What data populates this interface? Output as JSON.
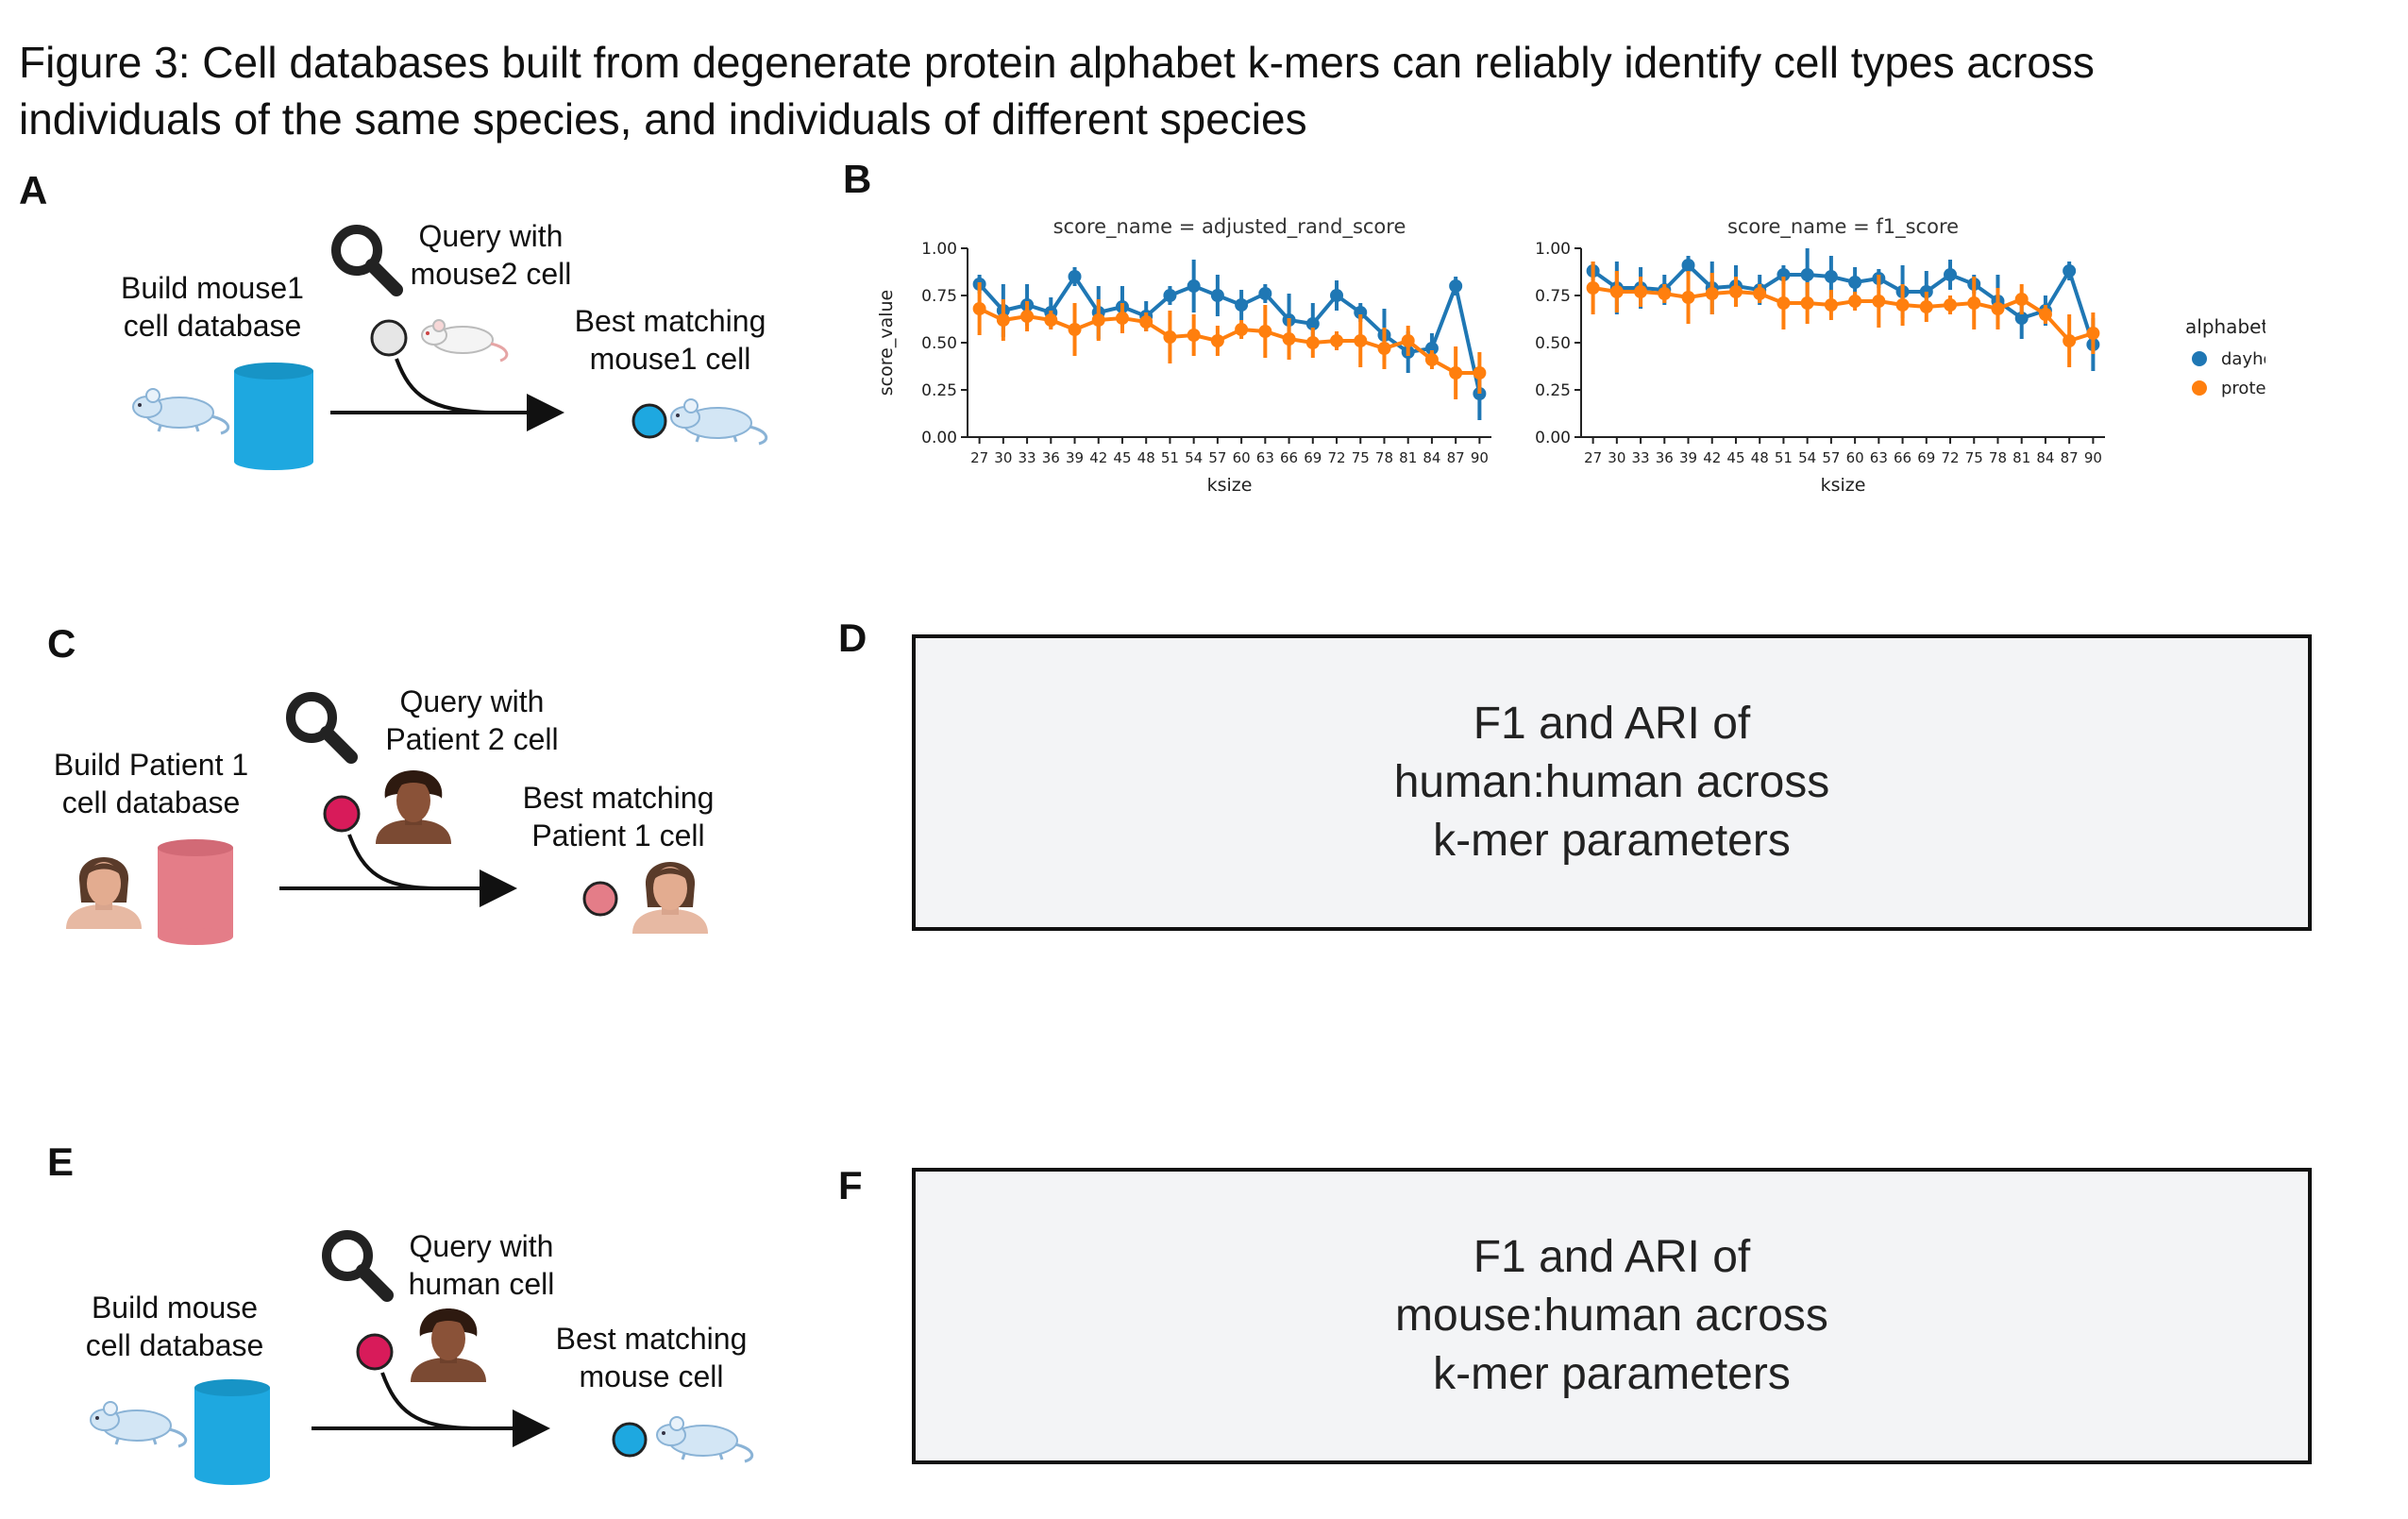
{
  "figure_title_line1": "Figure 3: Cell databases built from degenerate protein alphabet k-mers can reliably identify cell types across",
  "figure_title_line2": "individuals of the same species, and individuals of different species",
  "panels": {
    "A": {
      "label": "A",
      "build_line1": "Build mouse1",
      "build_line2": "cell database",
      "query_line1": "Query with",
      "query_line2": "mouse2 cell",
      "result_line1": "Best matching",
      "result_line2": "mouse1 cell",
      "database_color": "#1ea8e0",
      "query_dot_color": "#e6e6e6",
      "result_dot_color": "#1ea8e0"
    },
    "B": {
      "label": "B"
    },
    "C": {
      "label": "C",
      "build_line1": "Build Patient 1",
      "build_line2": "cell database",
      "query_line1": "Query with",
      "query_line2": "Patient 2 cell",
      "result_line1": "Best matching",
      "result_line2": "Patient 1 cell",
      "database_color": "#e47d88",
      "query_dot_color": "#d81b5a",
      "result_dot_color": "#e47d88"
    },
    "D": {
      "label": "D",
      "line1": "F1 and ARI of",
      "line2": "human:human across",
      "line3": "k-mer parameters"
    },
    "E": {
      "label": "E",
      "build_line1": "Build mouse",
      "build_line2": "cell database",
      "query_line1": "Query with",
      "query_line2": "human cell",
      "result_line1": "Best matching",
      "result_line2": "mouse cell",
      "database_color": "#1ea8e0",
      "query_dot_color": "#d81b5a",
      "result_dot_color": "#1ea8e0"
    },
    "F": {
      "label": "F",
      "line1": "F1 and ARI of",
      "line2": "mouse:human across",
      "line3": "k-mer parameters"
    }
  },
  "icons": [
    "magnifier-icon",
    "mouse-icon",
    "human-icon",
    "database-icon",
    "arrow-icon"
  ],
  "chart_data": [
    {
      "type": "line",
      "title": "score_name = adjusted_rand_score",
      "xlabel": "ksize",
      "ylabel": "score_value",
      "x": [
        27,
        30,
        33,
        36,
        39,
        42,
        45,
        48,
        51,
        54,
        57,
        60,
        63,
        66,
        69,
        72,
        75,
        78,
        81,
        84,
        87,
        90
      ],
      "ylim": [
        0,
        1
      ],
      "yticks": [
        "0.00",
        "0.25",
        "0.50",
        "0.75",
        "1.00"
      ],
      "series": [
        {
          "name": "dayhoff",
          "color": "#1f77b4",
          "values": [
            0.81,
            0.67,
            0.7,
            0.66,
            0.85,
            0.66,
            0.69,
            0.64,
            0.75,
            0.8,
            0.75,
            0.7,
            0.76,
            0.62,
            0.6,
            0.75,
            0.66,
            0.54,
            0.45,
            0.47,
            0.8,
            0.23
          ]
        },
        {
          "name": "protein",
          "color": "#ff7f0e",
          "values": [
            0.68,
            0.62,
            0.64,
            0.62,
            0.57,
            0.62,
            0.63,
            0.61,
            0.53,
            0.54,
            0.51,
            0.57,
            0.56,
            0.52,
            0.5,
            0.51,
            0.51,
            0.47,
            0.51,
            0.41,
            0.34,
            0.34
          ]
        }
      ]
    },
    {
      "type": "line",
      "title": "score_name = f1_score",
      "xlabel": "ksize",
      "ylabel": "",
      "x": [
        27,
        30,
        33,
        36,
        39,
        42,
        45,
        48,
        51,
        54,
        57,
        60,
        63,
        66,
        69,
        72,
        75,
        78,
        81,
        84,
        87,
        90
      ],
      "ylim": [
        0,
        1
      ],
      "yticks": [
        "0.00",
        "0.25",
        "0.50",
        "0.75",
        "1.00"
      ],
      "series": [
        {
          "name": "dayhoff",
          "color": "#1f77b4",
          "values": [
            0.88,
            0.79,
            0.79,
            0.78,
            0.91,
            0.79,
            0.8,
            0.78,
            0.86,
            0.86,
            0.85,
            0.82,
            0.84,
            0.77,
            0.77,
            0.86,
            0.81,
            0.72,
            0.63,
            0.67,
            0.88,
            0.49
          ]
        },
        {
          "name": "protein",
          "color": "#ff7f0e",
          "values": [
            0.79,
            0.77,
            0.77,
            0.76,
            0.74,
            0.76,
            0.77,
            0.76,
            0.71,
            0.71,
            0.7,
            0.72,
            0.72,
            0.7,
            0.69,
            0.7,
            0.71,
            0.68,
            0.73,
            0.65,
            0.51,
            0.55
          ]
        }
      ]
    }
  ],
  "legend": {
    "title": "alphabet",
    "items": [
      {
        "label": "dayhoff",
        "color": "#1f77b4"
      },
      {
        "label": "protein",
        "color": "#ff7f0e"
      }
    ]
  }
}
